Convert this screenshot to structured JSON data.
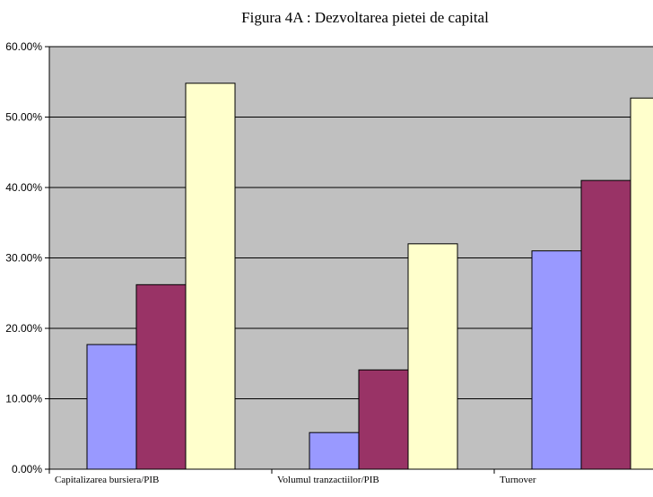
{
  "chart_data": {
    "type": "bar",
    "title": "Figura 4A : Dezvoltarea pietei de capital",
    "xlabel": "",
    "ylabel": "",
    "categories": [
      "Capitalizarea bursiera/PIB",
      "Volumul tranzactiilor/PIB",
      "Turnover"
    ],
    "series": [
      {
        "values": [
          17.7,
          5.2,
          31.0
        ],
        "color": "#9999ff"
      },
      {
        "values": [
          26.2,
          14.1,
          41.0
        ],
        "color": "#993366"
      },
      {
        "values": [
          54.8,
          32.0,
          52.7
        ],
        "color": "#ffffcc"
      }
    ],
    "ylim": [
      0,
      60
    ],
    "y_ticks": [
      "0.00%",
      "10.00%",
      "20.00%",
      "30.00%",
      "40.00%",
      "50.00%",
      "60.00%"
    ],
    "grid": true,
    "legend": "none",
    "plot_background": "#c0c0c0"
  }
}
